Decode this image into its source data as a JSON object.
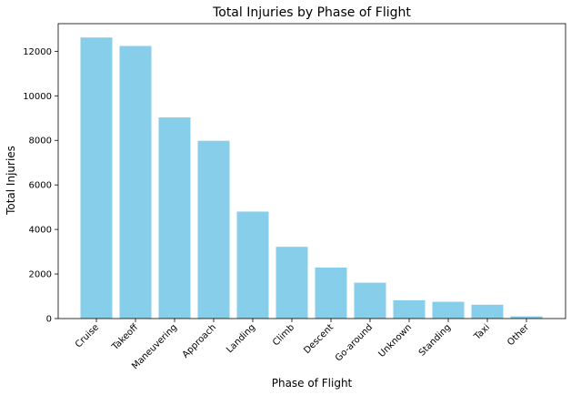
{
  "chart_data": {
    "type": "bar",
    "title": "Total Injuries by Phase of Flight",
    "xlabel": "Phase of Flight",
    "ylabel": "Total Injuries",
    "categories": [
      "Cruise",
      "Takeoff",
      "Maneuvering",
      "Approach",
      "Landing",
      "Climb",
      "Descent",
      "Go-around",
      "Unknown",
      "Standing",
      "Taxi",
      "Other"
    ],
    "values": [
      12620,
      12240,
      9030,
      7980,
      4800,
      3220,
      2290,
      1610,
      820,
      750,
      620,
      100
    ],
    "ylim": [
      0,
      13240
    ],
    "yticks": [
      0,
      2000,
      4000,
      6000,
      8000,
      10000,
      12000
    ],
    "bar_color": "#87CEEB",
    "grid": false,
    "legend": "none"
  }
}
